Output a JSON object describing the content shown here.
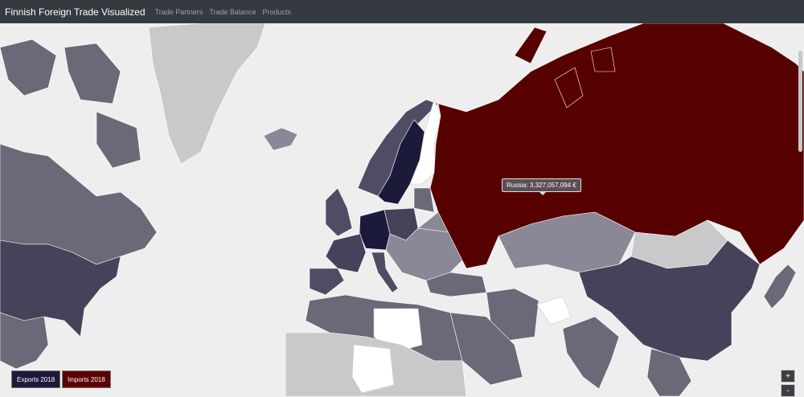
{
  "app": {
    "title": "Finnish Foreign Trade Visualized"
  },
  "nav": {
    "items": [
      "Trade Partners",
      "Trade Balance",
      "Products"
    ]
  },
  "tooltip": {
    "text": "Russia: 3,327,057,094 €"
  },
  "toggles": {
    "exports_label": "Exports 2018",
    "imports_label": "Imports 2018"
  },
  "zoom": {
    "in_label": "+",
    "out_label": "-"
  },
  "colors": {
    "navbar": "#343a40",
    "background": "#eeeeee",
    "russia_imports": "#570000",
    "dark_partner": "#1c1a3a",
    "mid_partner": "#6b6878",
    "light_partner": "#c9c9cc",
    "finland": "#ffffff"
  }
}
